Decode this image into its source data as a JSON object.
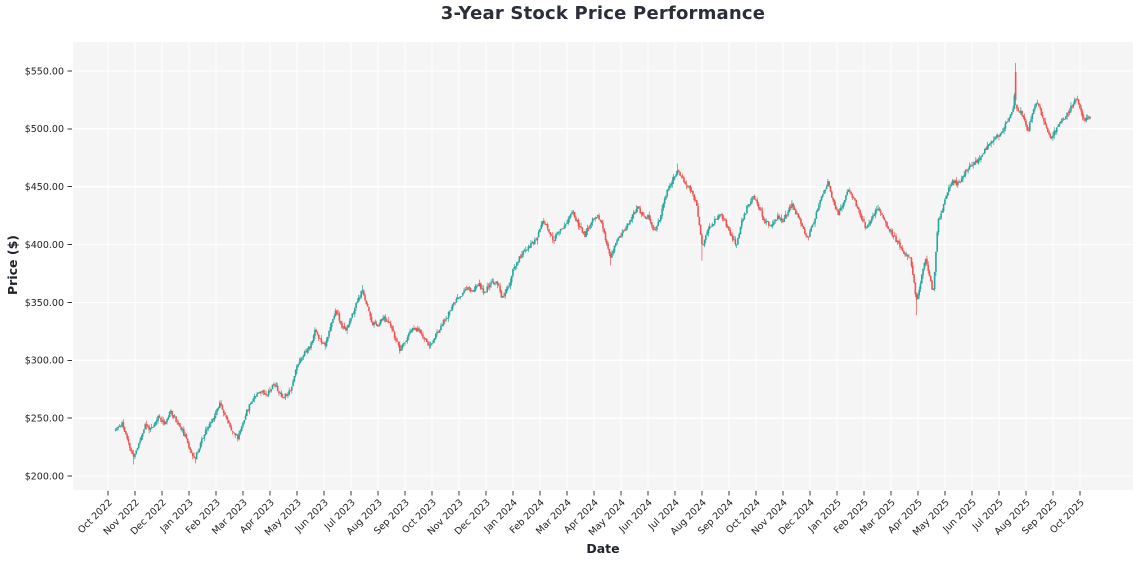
{
  "chart_data": {
    "type": "candlestick",
    "title": "3-Year Stock Price Performance",
    "xlabel": "Date",
    "ylabel": "Price ($)",
    "x_tick_labels": [
      "Oct 2022",
      "Nov 2022",
      "Dec 2022",
      "Jan 2023",
      "Feb 2023",
      "Mar 2023",
      "Apr 2023",
      "May 2023",
      "Jun 2023",
      "Jul 2023",
      "Aug 2023",
      "Sep 2023",
      "Oct 2023",
      "Nov 2023",
      "Dec 2023",
      "Jan 2024",
      "Feb 2024",
      "Mar 2024",
      "Apr 2024",
      "May 2024",
      "Jun 2024",
      "Jul 2024",
      "Aug 2024",
      "Sep 2024",
      "Oct 2024",
      "Nov 2024",
      "Dec 2024",
      "Jan 2025",
      "Feb 2025",
      "Mar 2025",
      "Apr 2025",
      "May 2025",
      "Jun 2025",
      "Jul 2025",
      "Aug 2025",
      "Sep 2025",
      "Oct 2025"
    ],
    "y_ticks": [
      200,
      250,
      300,
      350,
      400,
      450,
      500,
      550
    ],
    "y_tick_labels": [
      "$200.00",
      "$250.00",
      "$300.00",
      "$350.00",
      "$400.00",
      "$450.00",
      "$500.00",
      "$550.00"
    ],
    "ylim": [
      188,
      575
    ],
    "xlim_months": [
      -1.3,
      37.96
    ],
    "frequency": "daily",
    "trading_days_per_month": 21,
    "grid": true,
    "up_color": "#26a69a",
    "down_color": "#ef5350",
    "plot_bg_color": "#f5f5f6",
    "grid_color": "#ffffff",
    "tick_color": "#3a3a3a",
    "label_color": "#1f2329",
    "title_color": "#2a2e39",
    "series_start": {
      "t_months": 0.28,
      "price": 240
    },
    "series_end": {
      "t_months": 36.42,
      "price": 512
    },
    "close_trend_anchors_t_price": [
      [
        0.3,
        240
      ],
      [
        0.52,
        246
      ],
      [
        0.7,
        232
      ],
      [
        0.93,
        216
      ],
      [
        1.11,
        226
      ],
      [
        1.37,
        244
      ],
      [
        1.63,
        240
      ],
      [
        1.85,
        251
      ],
      [
        2.11,
        246
      ],
      [
        2.33,
        256
      ],
      [
        2.52,
        248
      ],
      [
        2.74,
        240
      ],
      [
        2.96,
        228
      ],
      [
        3.22,
        214
      ],
      [
        3.44,
        230
      ],
      [
        3.7,
        242
      ],
      [
        3.93,
        252
      ],
      [
        4.15,
        264
      ],
      [
        4.41,
        248
      ],
      [
        4.63,
        238
      ],
      [
        4.81,
        233
      ],
      [
        5.07,
        252
      ],
      [
        5.33,
        266
      ],
      [
        5.59,
        274
      ],
      [
        5.89,
        271
      ],
      [
        6.15,
        280
      ],
      [
        6.44,
        268
      ],
      [
        6.67,
        272
      ],
      [
        6.81,
        278
      ],
      [
        7.0,
        296
      ],
      [
        7.22,
        305
      ],
      [
        7.48,
        312
      ],
      [
        7.67,
        326
      ],
      [
        7.85,
        318
      ],
      [
        8.04,
        314
      ],
      [
        8.26,
        330
      ],
      [
        8.44,
        344
      ],
      [
        8.63,
        330
      ],
      [
        8.78,
        326
      ],
      [
        9.0,
        336
      ],
      [
        9.22,
        350
      ],
      [
        9.41,
        360
      ],
      [
        9.59,
        348
      ],
      [
        9.78,
        332
      ],
      [
        9.96,
        330
      ],
      [
        10.19,
        337
      ],
      [
        10.41,
        332
      ],
      [
        10.63,
        320
      ],
      [
        10.81,
        308
      ],
      [
        11.04,
        318
      ],
      [
        11.26,
        327
      ],
      [
        11.52,
        326
      ],
      [
        11.74,
        318
      ],
      [
        11.93,
        312
      ],
      [
        12.15,
        322
      ],
      [
        12.33,
        330
      ],
      [
        12.56,
        338
      ],
      [
        12.78,
        348
      ],
      [
        13.04,
        356
      ],
      [
        13.26,
        362
      ],
      [
        13.52,
        360
      ],
      [
        13.74,
        366
      ],
      [
        13.93,
        358
      ],
      [
        14.15,
        366
      ],
      [
        14.41,
        368
      ],
      [
        14.59,
        354
      ],
      [
        14.81,
        362
      ],
      [
        15.0,
        378
      ],
      [
        15.22,
        388
      ],
      [
        15.44,
        395
      ],
      [
        15.67,
        400
      ],
      [
        15.89,
        406
      ],
      [
        16.11,
        420
      ],
      [
        16.33,
        412
      ],
      [
        16.48,
        403
      ],
      [
        16.74,
        412
      ],
      [
        17.0,
        420
      ],
      [
        17.22,
        428
      ],
      [
        17.44,
        416
      ],
      [
        17.67,
        408
      ],
      [
        17.89,
        420
      ],
      [
        18.11,
        426
      ],
      [
        18.33,
        414
      ],
      [
        18.59,
        388
      ],
      [
        18.81,
        402
      ],
      [
        19.07,
        412
      ],
      [
        19.33,
        420
      ],
      [
        19.59,
        432
      ],
      [
        19.81,
        425
      ],
      [
        20.0,
        424
      ],
      [
        20.26,
        410
      ],
      [
        20.44,
        424
      ],
      [
        20.67,
        444
      ],
      [
        20.89,
        455
      ],
      [
        21.11,
        464
      ],
      [
        21.33,
        455
      ],
      [
        21.56,
        448
      ],
      [
        21.78,
        436
      ],
      [
        22.0,
        398
      ],
      [
        22.22,
        412
      ],
      [
        22.44,
        420
      ],
      [
        22.67,
        426
      ],
      [
        22.89,
        418
      ],
      [
        23.11,
        406
      ],
      [
        23.26,
        400
      ],
      [
        23.48,
        420
      ],
      [
        23.7,
        434
      ],
      [
        23.89,
        442
      ],
      [
        24.11,
        432
      ],
      [
        24.33,
        420
      ],
      [
        24.56,
        416
      ],
      [
        24.78,
        424
      ],
      [
        25.0,
        420
      ],
      [
        25.22,
        430
      ],
      [
        25.33,
        434
      ],
      [
        25.56,
        424
      ],
      [
        25.78,
        412
      ],
      [
        25.93,
        406
      ],
      [
        26.11,
        418
      ],
      [
        26.33,
        434
      ],
      [
        26.52,
        446
      ],
      [
        26.67,
        454
      ],
      [
        26.85,
        438
      ],
      [
        27.04,
        426
      ],
      [
        27.22,
        436
      ],
      [
        27.44,
        448
      ],
      [
        27.67,
        436
      ],
      [
        27.89,
        424
      ],
      [
        28.07,
        414
      ],
      [
        28.26,
        420
      ],
      [
        28.48,
        432
      ],
      [
        28.67,
        426
      ],
      [
        28.89,
        414
      ],
      [
        29.07,
        408
      ],
      [
        29.3,
        400
      ],
      [
        29.52,
        392
      ],
      [
        29.74,
        386
      ],
      [
        29.93,
        352
      ],
      [
        30.07,
        364
      ],
      [
        30.26,
        388
      ],
      [
        30.41,
        374
      ],
      [
        30.56,
        358
      ],
      [
        30.67,
        396
      ],
      [
        30.74,
        420
      ],
      [
        30.85,
        426
      ],
      [
        31.0,
        440
      ],
      [
        31.26,
        455
      ],
      [
        31.48,
        452
      ],
      [
        31.74,
        462
      ],
      [
        32.0,
        470
      ],
      [
        32.22,
        472
      ],
      [
        32.48,
        482
      ],
      [
        32.74,
        490
      ],
      [
        33.0,
        494
      ],
      [
        33.26,
        504
      ],
      [
        33.52,
        518
      ],
      [
        33.56,
        530
      ],
      [
        33.65,
        517
      ],
      [
        33.78,
        515
      ],
      [
        33.93,
        508
      ],
      [
        34.07,
        498
      ],
      [
        34.22,
        512
      ],
      [
        34.37,
        524
      ],
      [
        34.52,
        516
      ],
      [
        34.7,
        505
      ],
      [
        34.89,
        492
      ],
      [
        35.07,
        498
      ],
      [
        35.26,
        505
      ],
      [
        35.48,
        512
      ],
      [
        35.7,
        520
      ],
      [
        35.89,
        527
      ],
      [
        36.04,
        516
      ],
      [
        36.15,
        506
      ],
      [
        36.42,
        512
      ]
    ],
    "key_events": [
      {
        "t_months": 0.93,
        "low": 210
      },
      {
        "t_months": 3.22,
        "low": 211
      },
      {
        "t_months": 9.41,
        "high": 365
      },
      {
        "t_months": 18.59,
        "low": 382
      },
      {
        "t_months": 21.11,
        "high": 470
      },
      {
        "t_months": 22.0,
        "low": 386
      },
      {
        "t_months": 25.33,
        "high": 437
      },
      {
        "t_months": 29.93,
        "low": 339
      },
      {
        "t_months": 33.6,
        "open": 549,
        "high": 557,
        "low": 521,
        "close": 525
      }
    ]
  }
}
